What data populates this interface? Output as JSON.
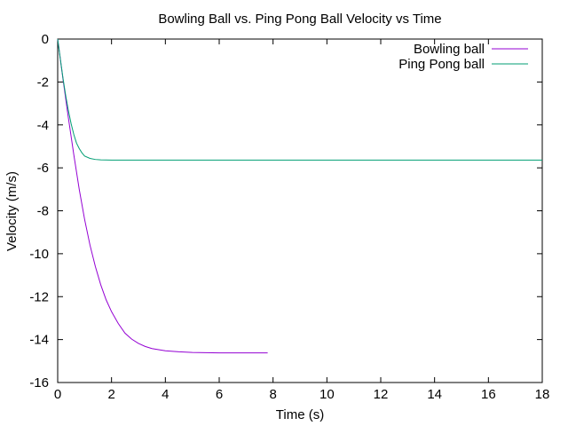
{
  "chart_data": {
    "type": "line",
    "title": "Bowling Ball vs. Ping Pong Ball Velocity vs Time",
    "xlabel": "Time (s)",
    "ylabel": "Velocity (m/s)",
    "xlim": [
      0,
      18
    ],
    "ylim": [
      -16,
      0
    ],
    "xticks": [
      "0",
      "2",
      "4",
      "6",
      "8",
      "10",
      "12",
      "14",
      "16",
      "18"
    ],
    "yticks": [
      "0",
      "-2",
      "-4",
      "-6",
      "-8",
      "-10",
      "-12",
      "-14",
      "-16"
    ],
    "grid": false,
    "legend_position": "top-right",
    "series": [
      {
        "name": "Bowling ball",
        "color": "#9400d3",
        "x": [
          0,
          0.2,
          0.4,
          0.6,
          0.8,
          1.0,
          1.2,
          1.4,
          1.6,
          1.8,
          2.0,
          2.25,
          2.5,
          2.75,
          3.0,
          3.25,
          3.5,
          4.0,
          4.5,
          5.0,
          5.5,
          6.0,
          6.5,
          7.0,
          7.5,
          7.8
        ],
        "y": [
          0,
          -1.9,
          -3.7,
          -5.4,
          -7.0,
          -8.4,
          -9.6,
          -10.6,
          -11.45,
          -12.15,
          -12.7,
          -13.25,
          -13.7,
          -13.98,
          -14.18,
          -14.32,
          -14.42,
          -14.52,
          -14.57,
          -14.6,
          -14.61,
          -14.62,
          -14.62,
          -14.62,
          -14.62,
          -14.62
        ]
      },
      {
        "name": "Ping Pong ball",
        "color": "#009e73",
        "x": [
          0,
          0.1,
          0.2,
          0.3,
          0.4,
          0.5,
          0.6,
          0.7,
          0.8,
          0.9,
          1.0,
          1.2,
          1.4,
          1.6,
          2.0,
          3.0,
          5.0,
          10.0,
          15.0,
          18.0
        ],
        "y": [
          0,
          -0.95,
          -1.85,
          -2.65,
          -3.35,
          -3.95,
          -4.45,
          -4.85,
          -5.1,
          -5.3,
          -5.45,
          -5.56,
          -5.61,
          -5.63,
          -5.64,
          -5.64,
          -5.64,
          -5.64,
          -5.64,
          -5.64
        ]
      }
    ]
  }
}
